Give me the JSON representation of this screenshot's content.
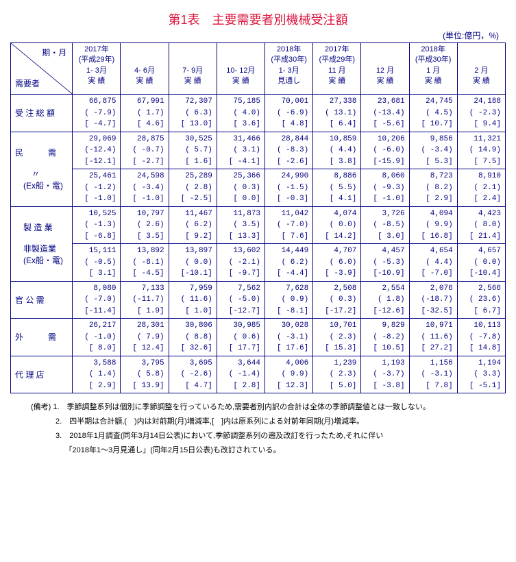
{
  "title": "第1表　主要需要者別機械受注額",
  "unit": "(単位:億円，%)",
  "corner": {
    "top": "期・月",
    "bottom": "需要者"
  },
  "headers": [
    "2017年\n(平成29年)\n1- 3月\n実 績",
    "\n\n4- 6月\n実 績",
    "\n\n7- 9月\n実 績",
    "\n\n10- 12月\n実 績",
    "2018年\n(平成30年)\n1- 3月\n見通し",
    "2017年\n(平成29年)\n11 月\n実 績",
    "\n\n12 月\n実 績",
    "2018年\n(平成30年)\n1 月\n実 績",
    "\n\n2 月\n実 績"
  ],
  "rows": [
    {
      "label": "受 注 総 額",
      "cells": [
        [
          "66,875",
          "( -7.9)",
          "[ -4.7]"
        ],
        [
          "67,991",
          "(  1.7)",
          "[  4.6]"
        ],
        [
          "72,307",
          "(  6.3)",
          "[ 13.0]"
        ],
        [
          "75,185",
          "(  4.0)",
          "[  3.6]"
        ],
        [
          "70,001",
          "( -6.9)",
          "[  4.8]"
        ],
        [
          "27,338",
          "( 13.1)",
          "[  6.4]"
        ],
        [
          "23,681",
          "(-13.4)",
          "[ -5.6]"
        ],
        [
          "24,745",
          "(  4.5)",
          "[ 10.7]"
        ],
        [
          "24,188",
          "( -2.3)",
          "[  9.4]"
        ]
      ]
    },
    {
      "label": "民　　　需",
      "cells": [
        [
          "29,069",
          "(-12.4)",
          "[-12.1]"
        ],
        [
          "28,875",
          "( -0.7)",
          "[ -2.7]"
        ],
        [
          "30,525",
          "(  5.7)",
          "[  1.6]"
        ],
        [
          "31,466",
          "(  3.1)",
          "[ -4.1]"
        ],
        [
          "28,844",
          "( -8.3)",
          "[ -2.6]"
        ],
        [
          "10,859",
          "(  4.4)",
          "[  3.8]"
        ],
        [
          "10,206",
          "( -6.0)",
          "[-15.9]"
        ],
        [
          "9,856",
          "( -3.4)",
          "[  5.3]"
        ],
        [
          "11,321",
          "( 14.9)",
          "[  7.5]"
        ]
      ]
    },
    {
      "label": "　　〃\n　(Ex船・電)",
      "cells": [
        [
          "25,461",
          "( -1.2)",
          "[ -1.0]"
        ],
        [
          "24,598",
          "( -3.4)",
          "[ -1.0]"
        ],
        [
          "25,289",
          "(  2.8)",
          "[ -2.5]"
        ],
        [
          "25,366",
          "(  0.3)",
          "[  0.0]"
        ],
        [
          "24,990",
          "( -1.5)",
          "[ -0.3]"
        ],
        [
          "8,886",
          "(  5.5)",
          "[  4.1]"
        ],
        [
          "8,060",
          "( -9.3)",
          "[ -1.0]"
        ],
        [
          "8,723",
          "(  8.2)",
          "[  2.9]"
        ],
        [
          "8,910",
          "(  2.1)",
          "[  2.4]"
        ]
      ]
    },
    {
      "label": "　製 造 業",
      "cells": [
        [
          "10,525",
          "( -1.3)",
          "[ -6.8]"
        ],
        [
          "10,797",
          "(  2.6)",
          "[  3.5]"
        ],
        [
          "11,467",
          "(  6.2)",
          "[  9.2]"
        ],
        [
          "11,873",
          "(  3.5)",
          "[ 13.3]"
        ],
        [
          "11,042",
          "( -7.0)",
          "[  7.6]"
        ],
        [
          "4,074",
          "(  0.0)",
          "[ 14.2]"
        ],
        [
          "3,726",
          "( -8.5)",
          "[  3.0]"
        ],
        [
          "4,094",
          "(  9.9)",
          "[ 16.8]"
        ],
        [
          "4,423",
          "(  8.0)",
          "[ 21.4]"
        ]
      ]
    },
    {
      "label": "　非製造業\n　(Ex船・電)",
      "cells": [
        [
          "15,111",
          "( -0.5)",
          "[  3.1]"
        ],
        [
          "13,892",
          "( -8.1)",
          "[ -4.5]"
        ],
        [
          "13,897",
          "(  0.0)",
          "[-10.1]"
        ],
        [
          "13,602",
          "( -2.1)",
          "[ -9.7]"
        ],
        [
          "14,449",
          "(  6.2)",
          "[ -4.4]"
        ],
        [
          "4,707",
          "(  6.0)",
          "[ -3.9]"
        ],
        [
          "4,457",
          "( -5.3)",
          "[-10.9]"
        ],
        [
          "4,654",
          "(  4.4)",
          "[ -7.0]"
        ],
        [
          "4,657",
          "(  0.0)",
          "[-10.4]"
        ]
      ]
    },
    {
      "label": "官 公 需",
      "cells": [
        [
          "8,080",
          "( -7.0)",
          "[-11.4]"
        ],
        [
          "7,133",
          "(-11.7)",
          "[  1.9]"
        ],
        [
          "7,959",
          "( 11.6)",
          "[  1.0]"
        ],
        [
          "7,562",
          "( -5.0)",
          "[-12.7]"
        ],
        [
          "7,628",
          "(  0.9)",
          "[ -8.1]"
        ],
        [
          "2,508",
          "(  0.3)",
          "[-17.2]"
        ],
        [
          "2,554",
          "(  1.8)",
          "[-12.6]"
        ],
        [
          "2,076",
          "(-18.7)",
          "[-32.5]"
        ],
        [
          "2,566",
          "( 23.6)",
          "[  6.7]"
        ]
      ]
    },
    {
      "label": "外　　　需",
      "cells": [
        [
          "26,217",
          "( -1.0)",
          "[  8.0]"
        ],
        [
          "28,301",
          "(  7.9)",
          "[ 12.4]"
        ],
        [
          "30,806",
          "(  8.8)",
          "[ 32.6]"
        ],
        [
          "30,985",
          "(  0.6)",
          "[ 17.7]"
        ],
        [
          "30,028",
          "( -3.1)",
          "[ 17.6]"
        ],
        [
          "10,701",
          "(  2.3)",
          "[ 15.3]"
        ],
        [
          "9,829",
          "( -8.2)",
          "[ 10.5]"
        ],
        [
          "10,971",
          "( 11.6)",
          "[ 27.2]"
        ],
        [
          "10,113",
          "( -7.8)",
          "[ 14.8]"
        ]
      ]
    },
    {
      "label": "代 理 店",
      "cells": [
        [
          "3,588",
          "(  1.4)",
          "[  2.9]"
        ],
        [
          "3,795",
          "(  5.8)",
          "[ 13.9]"
        ],
        [
          "3,695",
          "( -2.6)",
          "[  4.7]"
        ],
        [
          "3,644",
          "( -1.4)",
          "[  2.8]"
        ],
        [
          "4,006",
          "(  9.9)",
          "[ 12.3]"
        ],
        [
          "1,239",
          "(  2.3)",
          "[  5.0]"
        ],
        [
          "1,193",
          "( -3.7)",
          "[ -3.8]"
        ],
        [
          "1,156",
          "( -3.1)",
          "[  7.8]"
        ],
        [
          "1,194",
          "(  3.3)",
          "[ -5.1]"
        ]
      ]
    }
  ],
  "groups": [
    [
      0
    ],
    [
      1,
      2
    ],
    [
      3,
      4
    ],
    [
      5
    ],
    [
      6
    ],
    [
      7
    ]
  ],
  "notes": [
    "(備考) 1.　季節調整系列は個別に季節調整を行っているため,需要者別内訳の合計は全体の季節調整値とは一致しない。",
    "　　　 2.　四半期は合計額,(　)内は対前期(月)増減率,[　]内は原系列による対前年同期(月)増減率。",
    "　　　 3.　2018年1月調査(同年3月14日公表)において,季節調整系列の遡及改訂を行ったため,それに伴い",
    "　　　　　「2018年1～3月見通し」(同年2月15日公表)も改訂されている。"
  ]
}
